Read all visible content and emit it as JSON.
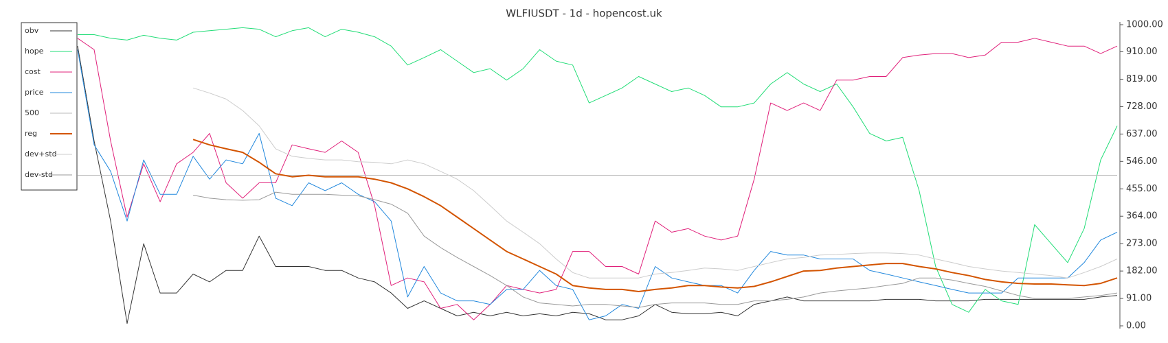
{
  "chart_data": {
    "type": "line",
    "title": "WLFIUSDT - 1d - hopencost.uk",
    "ylim": [
      0,
      1000
    ],
    "yticks": [
      {
        "value": 0,
        "label": "0.00"
      },
      {
        "value": 91,
        "label": "91.00"
      },
      {
        "value": 182,
        "label": "182.00"
      },
      {
        "value": 273,
        "label": "273.00"
      },
      {
        "value": 364,
        "label": "364.00"
      },
      {
        "value": 455,
        "label": "455.00"
      },
      {
        "value": 546,
        "label": "546.00"
      },
      {
        "value": 637,
        "label": "637.00"
      },
      {
        "value": 728,
        "label": "728.00"
      },
      {
        "value": 819,
        "label": "819.00"
      },
      {
        "value": 910,
        "label": "910.00"
      },
      {
        "value": 1000,
        "label": "1000.00"
      }
    ],
    "legend": "top-left",
    "series": [
      {
        "name": "obv",
        "color": "#333333",
        "width": 1,
        "values": [
          929,
          614,
          348,
          8,
          273,
          109,
          109,
          172,
          146,
          184,
          184,
          298,
          197,
          197,
          197,
          184,
          184,
          159,
          146,
          109,
          58,
          83,
          58,
          33,
          45,
          33,
          45,
          33,
          40,
          33,
          45,
          40,
          20,
          20,
          33,
          71,
          45,
          40,
          40,
          45,
          33,
          71,
          83,
          96,
          83,
          83,
          83,
          83,
          83,
          88,
          88,
          88,
          83,
          83,
          83,
          88,
          88,
          88,
          88,
          88,
          88,
          88,
          96,
          101
        ]
      },
      {
        "name": "hope",
        "color": "#22dd77",
        "width": 1,
        "values": [
          967,
          967,
          955,
          949,
          965,
          955,
          949,
          975,
          980,
          985,
          990,
          985,
          960,
          980,
          990,
          960,
          985,
          975,
          960,
          929,
          866,
          891,
          917,
          879,
          841,
          854,
          816,
          854,
          917,
          879,
          866,
          740,
          765,
          790,
          828,
          803,
          778,
          790,
          765,
          727,
          727,
          740,
          803,
          841,
          803,
          778,
          803,
          727,
          639,
          614,
          626,
          449,
          197,
          71,
          45,
          121,
          83,
          71,
          336,
          273,
          210,
          323,
          551,
          664
        ]
      },
      {
        "name": "cost",
        "color": "#e0207a",
        "width": 1,
        "values": [
          955,
          917,
          614,
          361,
          538,
          412,
          538,
          576,
          639,
          475,
          424,
          475,
          475,
          601,
          588,
          576,
          614,
          576,
          399,
          134,
          159,
          146,
          58,
          71,
          20,
          71,
          134,
          121,
          109,
          121,
          247,
          247,
          197,
          197,
          172,
          348,
          311,
          323,
          298,
          285,
          298,
          487,
          740,
          715,
          740,
          715,
          816,
          816,
          828,
          828,
          891,
          899,
          904,
          904,
          891,
          899,
          942,
          942,
          955,
          942,
          929,
          929,
          904,
          929
        ]
      },
      {
        "name": "price",
        "color": "#2288dd",
        "width": 1,
        "values": [
          917,
          601,
          513,
          348,
          551,
          437,
          437,
          563,
          487,
          551,
          538,
          639,
          424,
          399,
          475,
          449,
          475,
          437,
          412,
          348,
          96,
          197,
          109,
          83,
          83,
          71,
          121,
          121,
          184,
          134,
          121,
          20,
          33,
          71,
          58,
          197,
          159,
          146,
          134,
          134,
          109,
          184,
          247,
          235,
          235,
          222,
          222,
          222,
          184,
          172,
          159,
          146,
          134,
          121,
          109,
          109,
          109,
          159,
          159,
          159,
          159,
          210,
          285,
          311
        ]
      },
      {
        "name": "500",
        "color": "#bbbbbb",
        "width": 1,
        "values": [
          500,
          500,
          500,
          500,
          500,
          500,
          500,
          500,
          500,
          500,
          500,
          500,
          500,
          500,
          500,
          500,
          500,
          500,
          500,
          500,
          500,
          500,
          500,
          500,
          500,
          500,
          500,
          500,
          500,
          500,
          500,
          500,
          500,
          500,
          500,
          500,
          500,
          500,
          500,
          500,
          500,
          500,
          500,
          500,
          500,
          500,
          500,
          500,
          500,
          500,
          500,
          500,
          500,
          500,
          500,
          500,
          500,
          500,
          500,
          500,
          500,
          500,
          500,
          500
        ]
      },
      {
        "name": "reg",
        "color": "#d35400",
        "width": 2,
        "values": [
          null,
          null,
          null,
          null,
          null,
          null,
          null,
          619,
          601,
          588,
          576,
          543,
          505,
          495,
          500,
          495,
          495,
          495,
          487,
          475,
          455,
          429,
          399,
          361,
          323,
          285,
          247,
          222,
          197,
          172,
          134,
          126,
          121,
          121,
          114,
          121,
          126,
          134,
          134,
          129,
          126,
          131,
          146,
          164,
          182,
          184,
          192,
          197,
          202,
          207,
          207,
          197,
          189,
          177,
          167,
          154,
          146,
          141,
          139,
          139,
          136,
          134,
          141,
          159
        ]
      },
      {
        "name": "dev+std",
        "color": "#cccccc",
        "width": 1,
        "values": [
          null,
          null,
          null,
          null,
          null,
          null,
          null,
          790,
          773,
          753,
          715,
          664,
          588,
          563,
          556,
          551,
          551,
          545,
          543,
          538,
          551,
          538,
          513,
          487,
          449,
          399,
          348,
          311,
          273,
          222,
          177,
          159,
          159,
          159,
          159,
          172,
          177,
          184,
          192,
          189,
          184,
          197,
          210,
          222,
          227,
          235,
          237,
          240,
          242,
          242,
          240,
          235,
          222,
          210,
          197,
          189,
          182,
          177,
          172,
          167,
          159,
          177,
          197,
          222
        ]
      },
      {
        "name": "dev-std",
        "color": "#999999",
        "width": 1,
        "values": [
          null,
          null,
          null,
          null,
          null,
          null,
          null,
          434,
          424,
          419,
          417,
          419,
          444,
          437,
          437,
          437,
          434,
          432,
          419,
          404,
          374,
          298,
          260,
          227,
          197,
          167,
          134,
          96,
          76,
          71,
          66,
          71,
          71,
          66,
          61,
          71,
          76,
          76,
          76,
          71,
          71,
          83,
          83,
          88,
          96,
          109,
          116,
          121,
          126,
          134,
          141,
          159,
          159,
          152,
          141,
          131,
          116,
          101,
          91,
          91,
          91,
          96,
          101,
          109
        ]
      }
    ]
  }
}
